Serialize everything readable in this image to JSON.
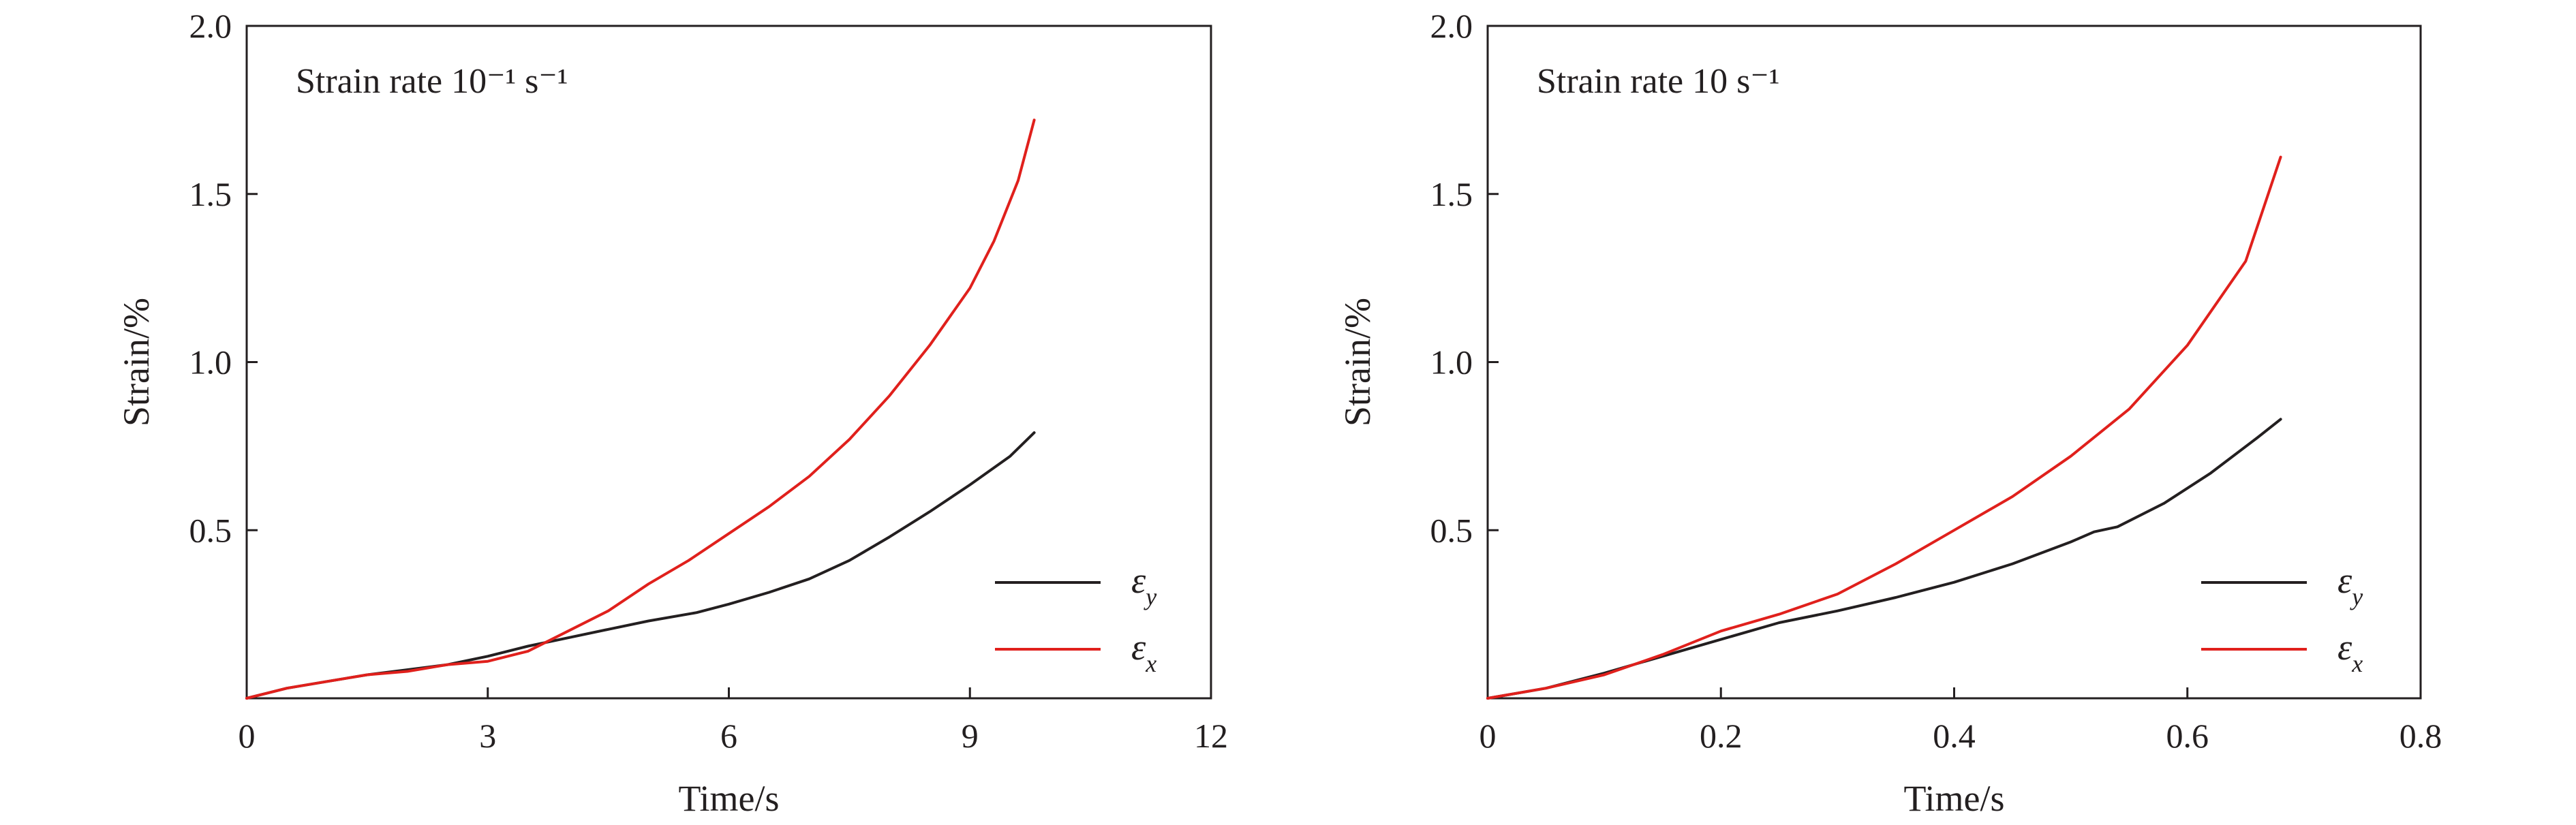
{
  "chart_data": [
    {
      "type": "line",
      "title": "Strain rate 10⁻¹ s⁻¹",
      "xlabel": "Time/s",
      "ylabel": "Strain/%",
      "xlim": [
        0,
        12
      ],
      "ylim": [
        0,
        2.0
      ],
      "xticks": [
        0,
        3,
        6,
        9,
        12
      ],
      "xtick_labels": [
        "0",
        "3",
        "6",
        "9",
        "12"
      ],
      "yticks": [
        0.5,
        1.0,
        1.5,
        2.0
      ],
      "ytick_labels": [
        "0.5",
        "1.0",
        "1.5",
        "2.0"
      ],
      "grid": false,
      "legend_position": "bottom-right",
      "series": [
        {
          "name": "εy",
          "color": "#231f20",
          "x": [
            0,
            0.5,
            1.0,
            1.5,
            2.0,
            2.5,
            3.0,
            3.5,
            4.0,
            4.5,
            5.0,
            5.6,
            6.0,
            6.5,
            7.0,
            7.5,
            8.0,
            8.5,
            9.0,
            9.5,
            9.8
          ],
          "y": [
            0,
            0.03,
            0.05,
            0.07,
            0.085,
            0.1,
            0.125,
            0.155,
            0.18,
            0.205,
            0.23,
            0.255,
            0.28,
            0.315,
            0.355,
            0.41,
            0.48,
            0.555,
            0.635,
            0.72,
            0.79
          ]
        },
        {
          "name": "εx",
          "color": "#e0201c",
          "x": [
            0,
            0.5,
            1.0,
            1.5,
            2.0,
            2.5,
            3.0,
            3.5,
            4.0,
            4.5,
            5.0,
            5.5,
            6.0,
            6.5,
            7.0,
            7.5,
            8.0,
            8.5,
            9.0,
            9.3,
            9.6,
            9.8
          ],
          "y": [
            0,
            0.03,
            0.05,
            0.07,
            0.08,
            0.1,
            0.11,
            0.14,
            0.2,
            0.26,
            0.34,
            0.41,
            0.49,
            0.57,
            0.66,
            0.77,
            0.9,
            1.05,
            1.22,
            1.36,
            1.54,
            1.72
          ]
        }
      ]
    },
    {
      "type": "line",
      "title": "Strain rate 10 s⁻¹",
      "xlabel": "Time/s",
      "ylabel": "Strain/%",
      "xlim": [
        0,
        0.8
      ],
      "ylim": [
        0,
        2.0
      ],
      "xticks": [
        0,
        0.2,
        0.4,
        0.6,
        0.8
      ],
      "xtick_labels": [
        "0",
        "0.2",
        "0.4",
        "0.6",
        "0.8"
      ],
      "yticks": [
        0.5,
        1.0,
        1.5,
        2.0
      ],
      "ytick_labels": [
        "0.5",
        "1.0",
        "1.5",
        "2.0"
      ],
      "grid": false,
      "legend_position": "bottom-right",
      "series": [
        {
          "name": "εy",
          "color": "#231f20",
          "x": [
            0,
            0.05,
            0.1,
            0.15,
            0.2,
            0.25,
            0.3,
            0.35,
            0.4,
            0.45,
            0.5,
            0.52,
            0.54,
            0.58,
            0.62,
            0.66,
            0.68
          ],
          "y": [
            0,
            0.03,
            0.075,
            0.125,
            0.175,
            0.225,
            0.26,
            0.3,
            0.345,
            0.4,
            0.465,
            0.495,
            0.51,
            0.58,
            0.67,
            0.775,
            0.83
          ]
        },
        {
          "name": "εx",
          "color": "#e0201c",
          "x": [
            0,
            0.05,
            0.1,
            0.15,
            0.2,
            0.25,
            0.3,
            0.35,
            0.4,
            0.45,
            0.5,
            0.55,
            0.6,
            0.65,
            0.68
          ],
          "y": [
            0,
            0.03,
            0.07,
            0.13,
            0.2,
            0.25,
            0.31,
            0.4,
            0.5,
            0.6,
            0.72,
            0.86,
            1.05,
            1.3,
            1.61
          ]
        }
      ]
    }
  ]
}
